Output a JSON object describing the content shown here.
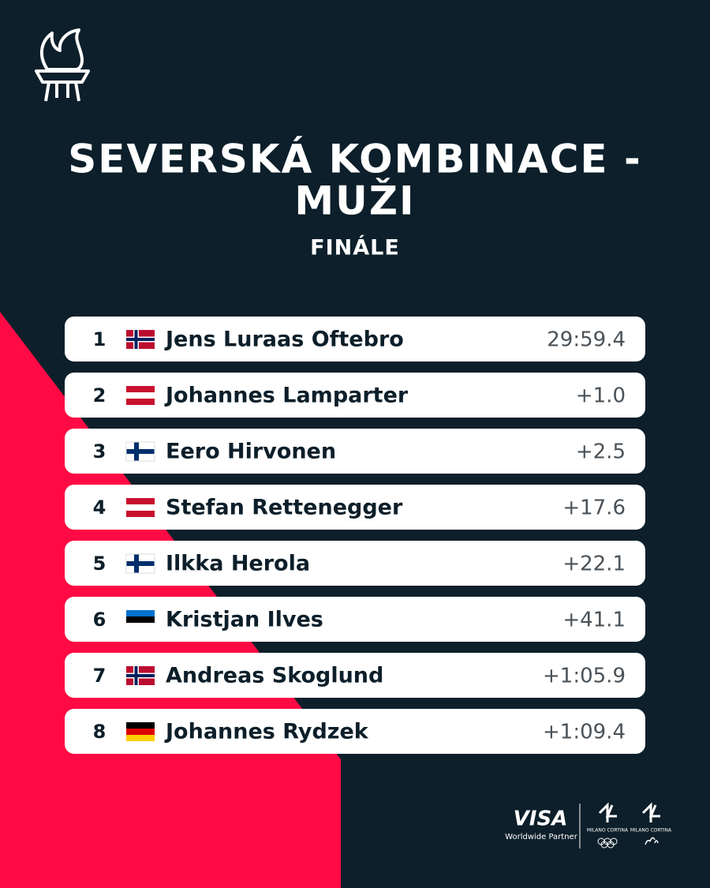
{
  "header": {
    "title_lines": [
      "SEVERSKÁ KOMBINACE -",
      "MUŽI"
    ],
    "subtitle": "FINÁLE"
  },
  "table": {
    "rows": [
      {
        "rank": 1,
        "name": "Jens Luraas Oftebro",
        "time": "29:59.4"
      },
      {
        "rank": 2,
        "name": "Johannes Lamparter",
        "time": "+1.0"
      },
      {
        "rank": 3,
        "name": "Eero Hirvonen",
        "time": "+2.5"
      },
      {
        "rank": 4,
        "name": "Stefan Rettenegger",
        "time": "+17.6"
      },
      {
        "rank": 5,
        "name": "Ilkka Herola",
        "time": "+22.1"
      },
      {
        "rank": 6,
        "name": "Kristjan Ilves",
        "time": "+41.1"
      },
      {
        "rank": 7,
        "name": "Andreas Skoglund",
        "time": "+1:05.9"
      },
      {
        "rank": 8,
        "name": "Johannes Rydzek",
        "time": "+1:09.4"
      }
    ]
  },
  "footer": {
    "sponsor": "VISA",
    "sponsor_tagline": "Worldwide Partner",
    "logo_text": "MILANO CORTINA"
  }
}
